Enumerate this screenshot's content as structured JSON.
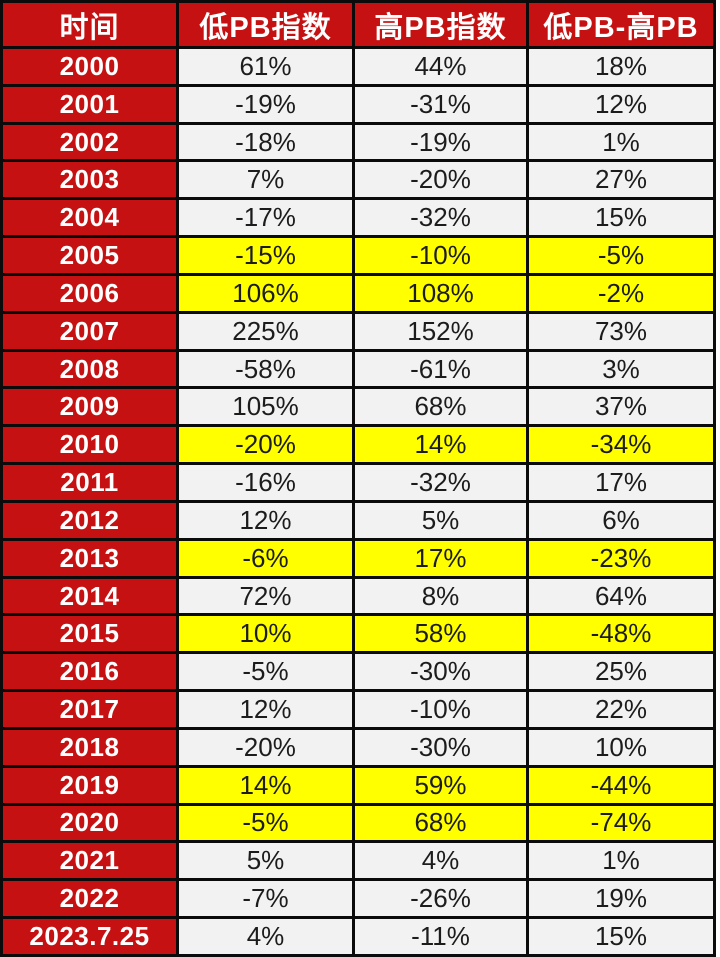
{
  "chart_data": {
    "type": "table",
    "title": "",
    "unit_suffix": "%",
    "columns": [
      "时间",
      "低PB指数",
      "高PB指数",
      "低PB-高PB"
    ],
    "highlight_color": "#ffff00",
    "header_color": "#c51111",
    "cell_color": "#f2f2f2",
    "rows": [
      {
        "time": "2000",
        "low_pb": 61,
        "high_pb": 44,
        "diff": 18,
        "highlighted": false
      },
      {
        "time": "2001",
        "low_pb": -19,
        "high_pb": -31,
        "diff": 12,
        "highlighted": false
      },
      {
        "time": "2002",
        "low_pb": -18,
        "high_pb": -19,
        "diff": 1,
        "highlighted": false
      },
      {
        "time": "2003",
        "low_pb": 7,
        "high_pb": -20,
        "diff": 27,
        "highlighted": false
      },
      {
        "time": "2004",
        "low_pb": -17,
        "high_pb": -32,
        "diff": 15,
        "highlighted": false
      },
      {
        "time": "2005",
        "low_pb": -15,
        "high_pb": -10,
        "diff": -5,
        "highlighted": true
      },
      {
        "time": "2006",
        "low_pb": 106,
        "high_pb": 108,
        "diff": -2,
        "highlighted": true
      },
      {
        "time": "2007",
        "low_pb": 225,
        "high_pb": 152,
        "diff": 73,
        "highlighted": false
      },
      {
        "time": "2008",
        "low_pb": -58,
        "high_pb": -61,
        "diff": 3,
        "highlighted": false
      },
      {
        "time": "2009",
        "low_pb": 105,
        "high_pb": 68,
        "diff": 37,
        "highlighted": false
      },
      {
        "time": "2010",
        "low_pb": -20,
        "high_pb": 14,
        "diff": -34,
        "highlighted": true
      },
      {
        "time": "2011",
        "low_pb": -16,
        "high_pb": -32,
        "diff": 17,
        "highlighted": false
      },
      {
        "time": "2012",
        "low_pb": 12,
        "high_pb": 5,
        "diff": 6,
        "highlighted": false
      },
      {
        "time": "2013",
        "low_pb": -6,
        "high_pb": 17,
        "diff": -23,
        "highlighted": true
      },
      {
        "time": "2014",
        "low_pb": 72,
        "high_pb": 8,
        "diff": 64,
        "highlighted": false
      },
      {
        "time": "2015",
        "low_pb": 10,
        "high_pb": 58,
        "diff": -48,
        "highlighted": true
      },
      {
        "time": "2016",
        "low_pb": -5,
        "high_pb": -30,
        "diff": 25,
        "highlighted": false
      },
      {
        "time": "2017",
        "low_pb": 12,
        "high_pb": -10,
        "diff": 22,
        "highlighted": false
      },
      {
        "time": "2018",
        "low_pb": -20,
        "high_pb": -30,
        "diff": 10,
        "highlighted": false
      },
      {
        "time": "2019",
        "low_pb": 14,
        "high_pb": 59,
        "diff": -44,
        "highlighted": true
      },
      {
        "time": "2020",
        "low_pb": -5,
        "high_pb": 68,
        "diff": -74,
        "highlighted": true
      },
      {
        "time": "2021",
        "low_pb": 5,
        "high_pb": 4,
        "diff": 1,
        "highlighted": false
      },
      {
        "time": "2022",
        "low_pb": -7,
        "high_pb": -26,
        "diff": 19,
        "highlighted": false
      },
      {
        "time": "2023.7.25",
        "low_pb": 4,
        "high_pb": -11,
        "diff": 15,
        "highlighted": false
      }
    ]
  }
}
